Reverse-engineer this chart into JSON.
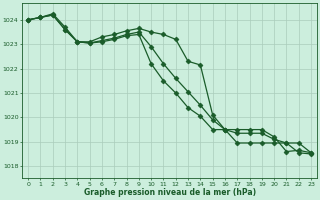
{
  "background_color": "#cceedd",
  "grid_color": "#aaccbb",
  "line_color": "#1a5c2a",
  "title": "Graphe pression niveau de la mer (hPa)",
  "xlim": [
    -0.5,
    23.5
  ],
  "ylim": [
    1017.5,
    1024.7
  ],
  "yticks": [
    1018,
    1019,
    1020,
    1021,
    1022,
    1023,
    1024
  ],
  "xticks": [
    0,
    1,
    2,
    3,
    4,
    5,
    6,
    7,
    8,
    9,
    10,
    11,
    12,
    13,
    14,
    15,
    16,
    17,
    18,
    19,
    20,
    21,
    22,
    23
  ],
  "series": [
    {
      "x": [
        0,
        1,
        2,
        3,
        4,
        5,
        6,
        7,
        8,
        9,
        10,
        11,
        12,
        13,
        14,
        15,
        16,
        17,
        18,
        19,
        20,
        21,
        22,
        23
      ],
      "y": [
        1024.0,
        1024.1,
        1024.25,
        1023.7,
        1023.1,
        1023.1,
        1023.3,
        1023.4,
        1023.55,
        1023.65,
        1023.5,
        1023.4,
        1023.2,
        1022.3,
        1022.15,
        1020.1,
        1019.5,
        1018.95,
        1018.95,
        1018.95,
        1018.95,
        1018.95,
        1018.55,
        1018.5
      ],
      "marker": "D",
      "markersize": 2.5,
      "linewidth": 0.9
    },
    {
      "x": [
        0,
        1,
        2,
        3,
        4,
        5,
        6,
        7,
        8,
        9,
        10,
        11,
        12,
        13,
        14,
        15,
        16,
        17,
        18,
        19,
        20,
        21,
        22,
        23
      ],
      "y": [
        1024.0,
        1024.1,
        1024.2,
        1023.6,
        1023.1,
        1023.05,
        1023.15,
        1023.25,
        1023.4,
        1023.5,
        1022.9,
        1022.2,
        1021.6,
        1021.05,
        1020.5,
        1019.9,
        1019.5,
        1019.35,
        1019.35,
        1019.35,
        1019.1,
        1018.95,
        1018.95,
        1018.55
      ],
      "marker": "D",
      "markersize": 2.5,
      "linewidth": 0.9
    },
    {
      "x": [
        0,
        1,
        2,
        3,
        4,
        5,
        6,
        7,
        8,
        9,
        10,
        11,
        12,
        13,
        14,
        15,
        16,
        17,
        18,
        19,
        20,
        21,
        22,
        23
      ],
      "y": [
        1024.0,
        1024.1,
        1024.2,
        1023.6,
        1023.1,
        1023.05,
        1023.1,
        1023.2,
        1023.35,
        1023.4,
        1022.2,
        1021.5,
        1021.0,
        1020.4,
        1020.05,
        1019.5,
        1019.5,
        1019.5,
        1019.5,
        1019.5,
        1019.2,
        1018.6,
        1018.65,
        1018.55
      ],
      "marker": "D",
      "markersize": 2.5,
      "linewidth": 0.9
    }
  ]
}
